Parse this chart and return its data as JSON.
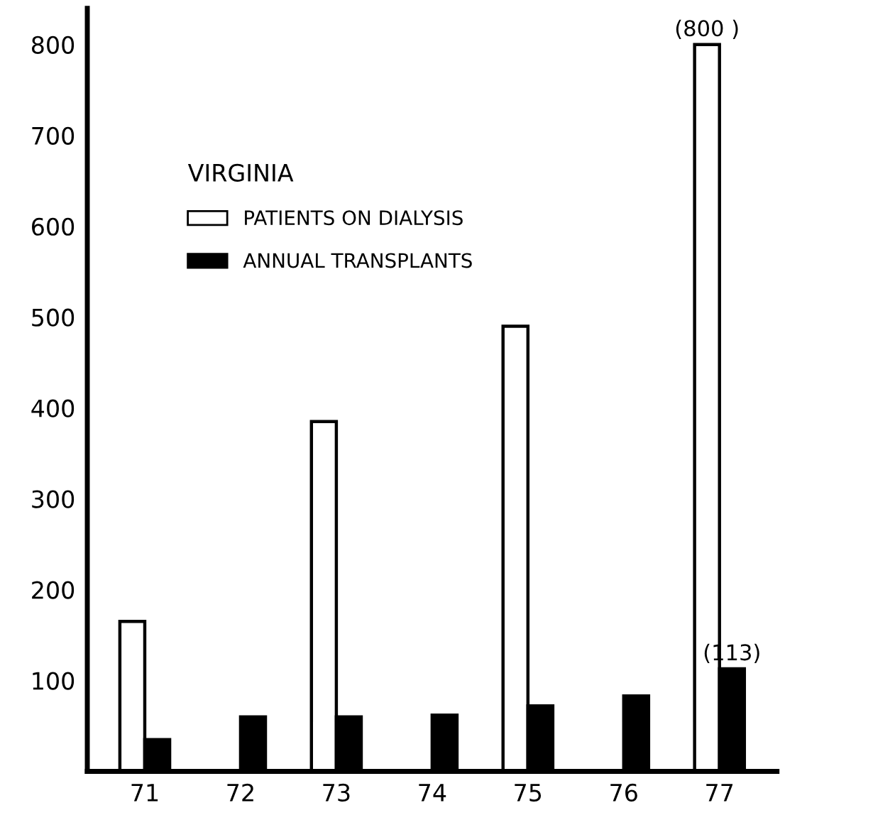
{
  "chart_data": {
    "type": "bar",
    "categories": [
      "71",
      "72",
      "73",
      "74",
      "75",
      "76",
      "77"
    ],
    "series": [
      {
        "name": "PATIENTS ON DIALYSIS",
        "color": "#ffffff",
        "values": [
          165,
          null,
          385,
          null,
          490,
          null,
          800
        ],
        "value_labels": [
          null,
          null,
          null,
          null,
          null,
          null,
          "(800 )"
        ]
      },
      {
        "name": "ANNUAL TRANSPLANTS",
        "color": "#000000",
        "values": [
          35,
          60,
          60,
          62,
          72,
          83,
          113
        ],
        "value_labels": [
          null,
          null,
          null,
          null,
          null,
          null,
          "(113)"
        ]
      }
    ],
    "legend_title": "VIRGINIA",
    "legend": "top left",
    "ylim": [
      0,
      840
    ],
    "yticks": [
      100,
      200,
      300,
      400,
      500,
      600,
      700,
      800
    ],
    "grid": false
  }
}
